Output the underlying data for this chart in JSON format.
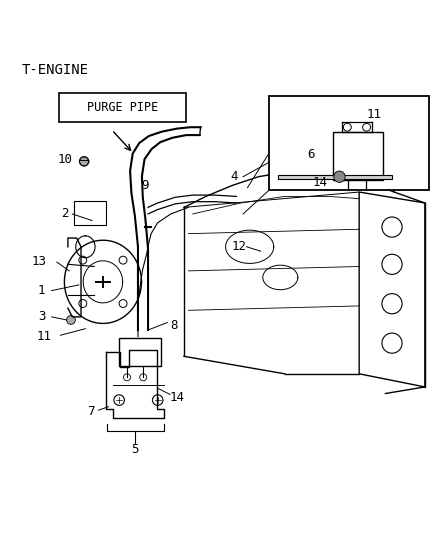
{
  "title": "T-ENGINE",
  "bg_color": "#ffffff",
  "line_color": "#000000",
  "purge_pipe_label": "PURGE PIPE",
  "font_size": 9,
  "title_font_size": 10
}
